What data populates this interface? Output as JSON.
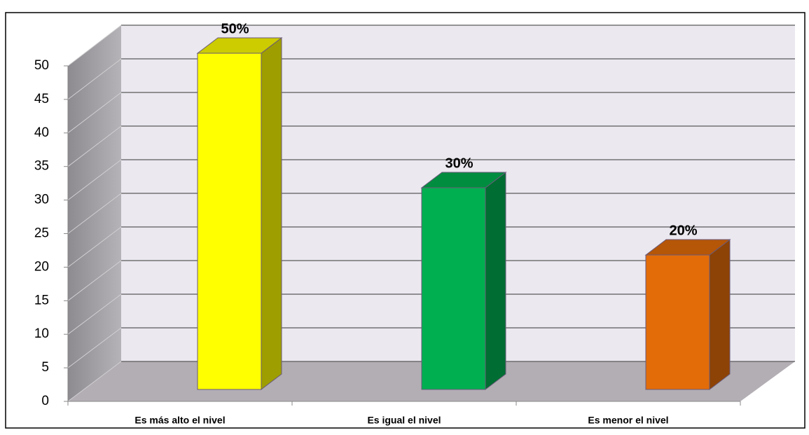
{
  "chart_data": {
    "type": "bar3d",
    "categories": [
      "Es más alto el nivel",
      "Es igual el nivel",
      "Es menor el nivel"
    ],
    "values": [
      50,
      30,
      20
    ],
    "value_labels": [
      "50%",
      "30%",
      "20%"
    ],
    "colors": [
      "#ffff00",
      "#00b050",
      "#e36c09"
    ],
    "ylim": [
      0,
      50
    ],
    "yticks": [
      0,
      5,
      10,
      15,
      20,
      25,
      30,
      35,
      40,
      45,
      50
    ],
    "grid": true
  }
}
